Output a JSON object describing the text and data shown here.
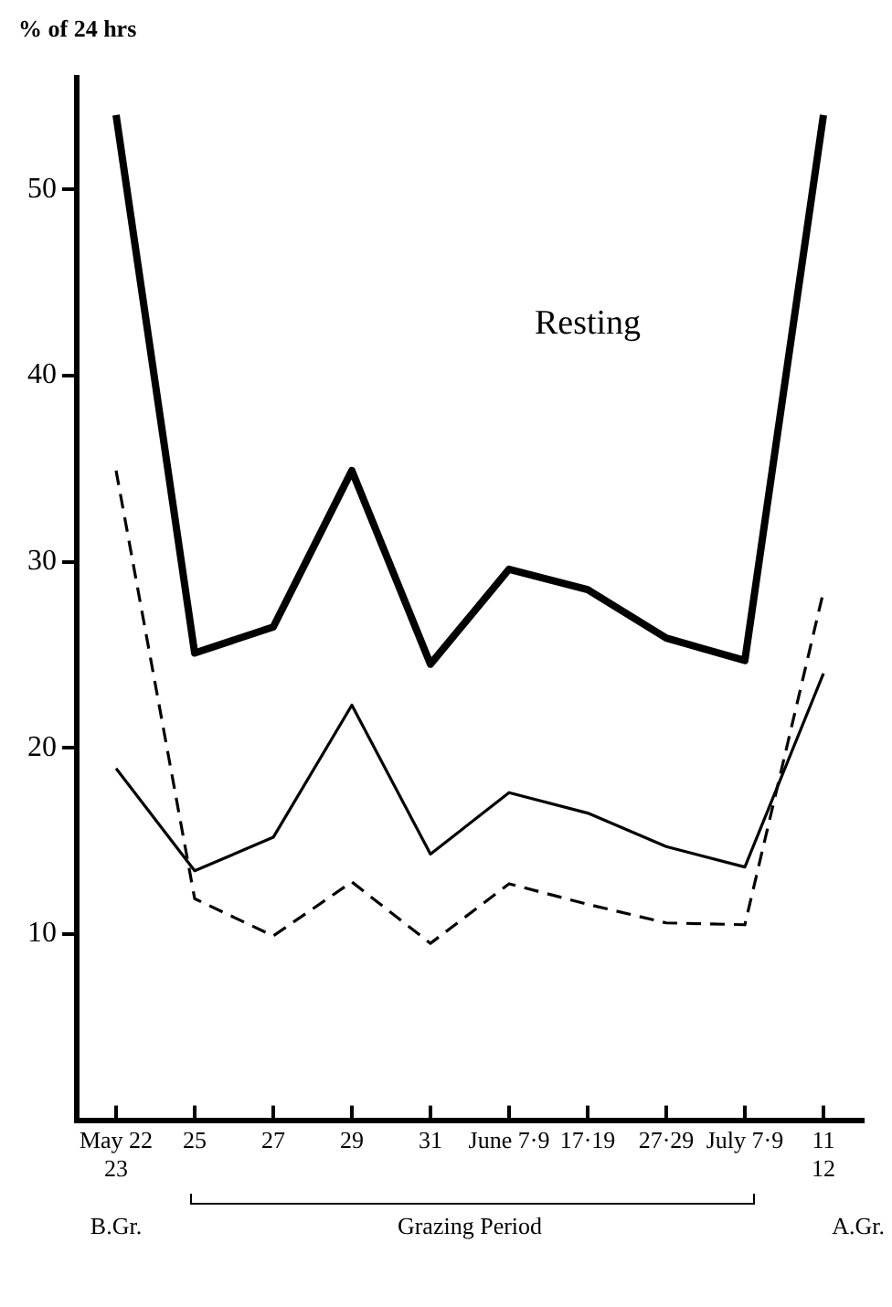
{
  "chart_data": {
    "type": "line",
    "ylabel": "% of 24 hrs",
    "categories": [
      "May 22\n23",
      "25",
      "27",
      "29",
      "31",
      "June 7·9",
      "17·19",
      "27·29",
      "July 7·9",
      "11\n12"
    ],
    "ylim": [
      0,
      56
    ],
    "yticks": [
      10,
      20,
      30,
      40,
      50
    ],
    "grid": false,
    "legend": false,
    "marker": "none",
    "series": [
      {
        "name": "Resting",
        "color": "#000000",
        "line_style": "solid",
        "values": [
          54.0,
          25.1,
          26.5,
          34.9,
          24.5,
          29.6,
          28.5,
          25.9,
          24.7,
          54.0
        ]
      },
      {
        "color": "#000000",
        "line_style": "solid",
        "values": [
          18.9,
          13.4,
          15.2,
          22.3,
          14.3,
          17.6,
          16.5,
          14.7,
          13.6,
          24.0
        ]
      },
      {
        "color": "#000000",
        "line_style": "dashed",
        "values": [
          34.9,
          11.9,
          9.9,
          12.8,
          9.5,
          12.7,
          11.6,
          10.6,
          10.5,
          28.4
        ]
      }
    ],
    "annotations": [
      "B.Gr.",
      "Grazing Period",
      "A.Gr."
    ]
  }
}
